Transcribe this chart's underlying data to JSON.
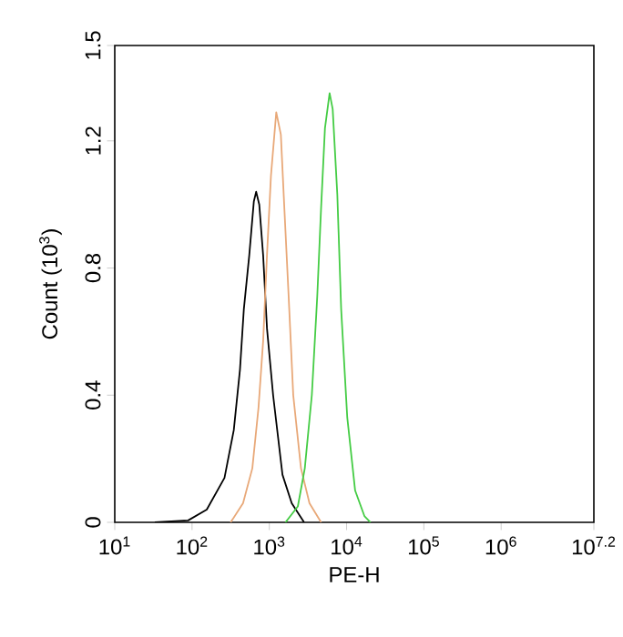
{
  "chart_data": {
    "type": "line",
    "xlabel": "PE-H",
    "ylabel": "Count (10$^{3}$)",
    "log": "x",
    "xlim": [
      10,
      15848932
    ],
    "ylim": [
      0,
      1.5
    ],
    "xticks": [
      {
        "value": 10,
        "label": "10$^{1}$"
      },
      {
        "value": 100,
        "label": "10$^{2}$"
      },
      {
        "value": 1000,
        "label": "10$^{3}$"
      },
      {
        "value": 10000,
        "label": "10$^{4}$"
      },
      {
        "value": 100000,
        "label": "10$^{5}$"
      },
      {
        "value": 1000000,
        "label": "10$^{6}$"
      },
      {
        "value": 15848932,
        "label": "10$^{7.2}$"
      }
    ],
    "yticks": [
      0,
      0.4,
      0.8,
      1.2,
      1.5
    ],
    "marker": "none",
    "line_style": "solid",
    "grid": false,
    "series": [
      {
        "color": "#000000",
        "x": [
          33,
          89,
          155,
          263,
          347,
          417,
          468,
          550,
          631,
          676,
          741,
          832,
          933,
          1120,
          1480,
          1950,
          2820
        ],
        "values": [
          0,
          0.006,
          0.04,
          0.14,
          0.29,
          0.48,
          0.67,
          0.84,
          1.01,
          1.04,
          1.0,
          0.84,
          0.61,
          0.4,
          0.15,
          0.06,
          0
        ]
      },
      {
        "color": "#e8a878",
        "x": [
          316,
          457,
          603,
          724,
          832,
          933,
          1050,
          1230,
          1410,
          1550,
          1780,
          2040,
          2570,
          3310,
          4680
        ],
        "values": [
          0,
          0.06,
          0.17,
          0.36,
          0.57,
          0.84,
          1.09,
          1.29,
          1.22,
          1.01,
          0.71,
          0.4,
          0.17,
          0.06,
          0
        ]
      },
      {
        "color": "#44cc44",
        "x": [
          1620,
          2340,
          2880,
          3550,
          4170,
          4680,
          5250,
          6030,
          6610,
          7590,
          8510,
          10200,
          12900,
          17000,
          20400
        ],
        "values": [
          0,
          0.05,
          0.17,
          0.4,
          0.71,
          0.99,
          1.24,
          1.35,
          1.3,
          1.03,
          0.67,
          0.33,
          0.1,
          0.02,
          0
        ]
      }
    ]
  }
}
